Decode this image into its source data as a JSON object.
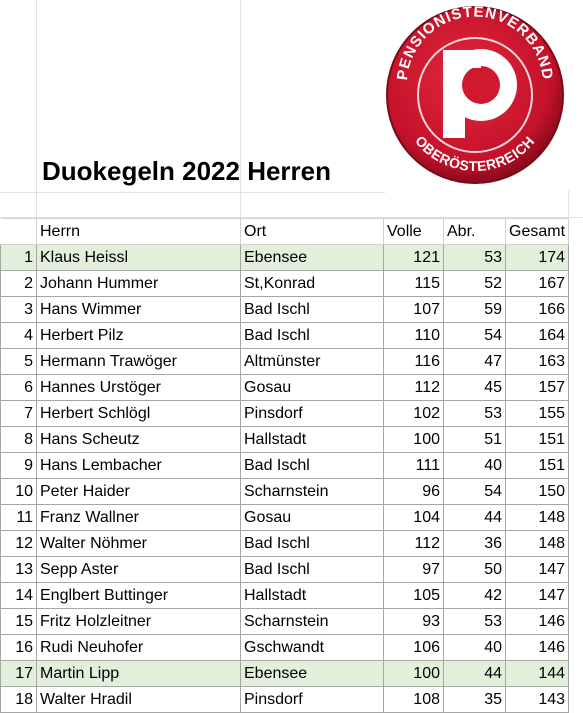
{
  "logo": {
    "top_text": "PENSIONISTENVERBAND",
    "bottom_text": "OBERÖSTERREICH"
  },
  "title": "Duokegeln 2022 Herren",
  "table": {
    "header": [
      "Herrn",
      "Ort",
      "Volle",
      "Abr.",
      "Gesamt"
    ],
    "rows": [
      [
        1,
        "Klaus Heissl",
        "Ebensee",
        121,
        53,
        174
      ],
      [
        2,
        "Johann Hummer",
        "St,Konrad",
        115,
        52,
        167
      ],
      [
        3,
        "Hans Wimmer",
        "Bad Ischl",
        107,
        59,
        166
      ],
      [
        4,
        "Herbert Pilz",
        "Bad Ischl",
        110,
        54,
        164
      ],
      [
        5,
        "Hermann Trawöger",
        "Altmünster",
        116,
        47,
        163
      ],
      [
        6,
        "Hannes Urstöger",
        "Gosau",
        112,
        45,
        157
      ],
      [
        7,
        "Herbert Schlögl",
        "Pinsdorf",
        102,
        53,
        155
      ],
      [
        8,
        "Hans Scheutz",
        "Hallstadt",
        100,
        51,
        151
      ],
      [
        9,
        "Hans Lembacher",
        "Bad Ischl",
        111,
        40,
        151
      ],
      [
        10,
        "Peter Haider",
        "Scharnstein",
        96,
        54,
        150
      ],
      [
        11,
        "Franz Wallner",
        "Gosau",
        104,
        44,
        148
      ],
      [
        12,
        "Walter Nöhmer",
        "Bad Ischl",
        112,
        36,
        148
      ],
      [
        13,
        "Sepp Aster",
        "Bad Ischl",
        97,
        50,
        147
      ],
      [
        14,
        "Englbert Buttinger",
        "Hallstadt",
        105,
        42,
        147
      ],
      [
        15,
        "Fritz Holzleitner",
        "Scharnstein",
        93,
        53,
        146
      ],
      [
        16,
        "Rudi Neuhofer",
        "Gschwandt",
        106,
        40,
        146
      ],
      [
        17,
        "Martin Lipp",
        "Ebensee",
        100,
        44,
        144
      ],
      [
        18,
        "Walter Hradil",
        "Pinsdorf",
        108,
        35,
        143
      ]
    ]
  }
}
